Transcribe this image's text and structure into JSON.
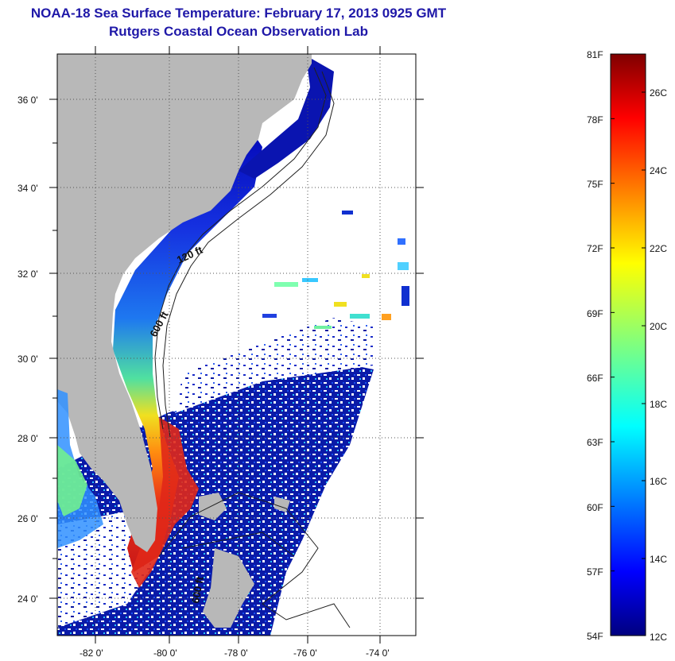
{
  "title": {
    "line1": "NOAA-18 Sea Surface Temperature:  February 17, 2013 0925 GMT",
    "line2": "Rutgers Coastal Ocean Observation Lab"
  },
  "map": {
    "lat_ticks": [
      "36 0'",
      "34 0'",
      "32 0'",
      "30 0'",
      "28 0'",
      "26 0'",
      "24 0'"
    ],
    "lon_ticks": [
      "-82 0'",
      "-80 0'",
      "-78 0'",
      "-76 0'",
      "-74 0'"
    ],
    "contour_labels": [
      "120 ft",
      "600 ft",
      "600 ft"
    ],
    "colors": {
      "land": "#b8b8b8",
      "cloud": "#ffffff",
      "grid": "#555555"
    }
  },
  "colorbar": {
    "fahrenheit_labels": [
      "81F",
      "78F",
      "75F",
      "72F",
      "69F",
      "66F",
      "63F",
      "60F",
      "57F",
      "54F"
    ],
    "celsius_labels": [
      "26C",
      "24C",
      "22C",
      "20C",
      "18C",
      "16C",
      "14C",
      "12C"
    ],
    "range_f": [
      54,
      81
    ],
    "colormap": "jet"
  }
}
